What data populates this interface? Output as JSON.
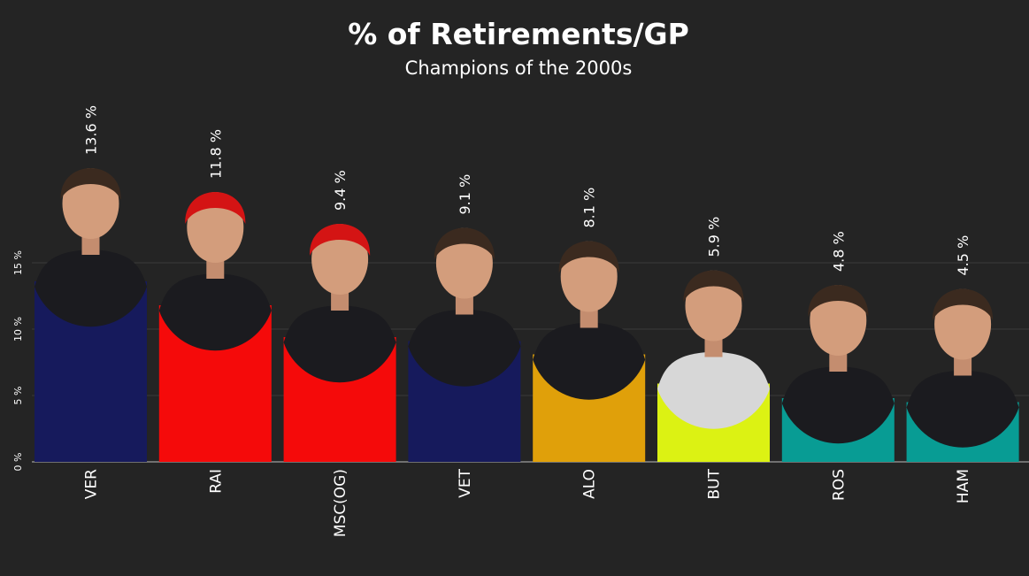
{
  "chart_data": {
    "type": "bar",
    "title": "% of Retirements/GP",
    "subtitle": "Champions of the 2000s",
    "categories": [
      "VER",
      "RAI",
      "MSC(OG)",
      "VET",
      "ALO",
      "BUT",
      "ROS",
      "HAM"
    ],
    "values": [
      13.6,
      11.8,
      9.4,
      9.1,
      8.1,
      5.9,
      4.8,
      4.5
    ],
    "value_labels": [
      "13.6 %",
      "11.8 %",
      "9.4 %",
      "9.1 %",
      "8.1 %",
      "5.9 %",
      "4.8 %",
      "4.5 %"
    ],
    "bar_colors": [
      "#161a5c",
      "#f50a0a",
      "#f50a0a",
      "#161a5c",
      "#e0a00a",
      "#dcf213",
      "#089c94",
      "#089c94"
    ],
    "yticks": [
      0,
      5,
      10,
      15
    ],
    "ytick_labels": [
      "0 %",
      "5 %",
      "10 %",
      "15 %"
    ],
    "ylim": [
      0,
      15
    ],
    "grid": true,
    "background": "#242424",
    "bar_decoration": "driver portrait above each bar"
  }
}
